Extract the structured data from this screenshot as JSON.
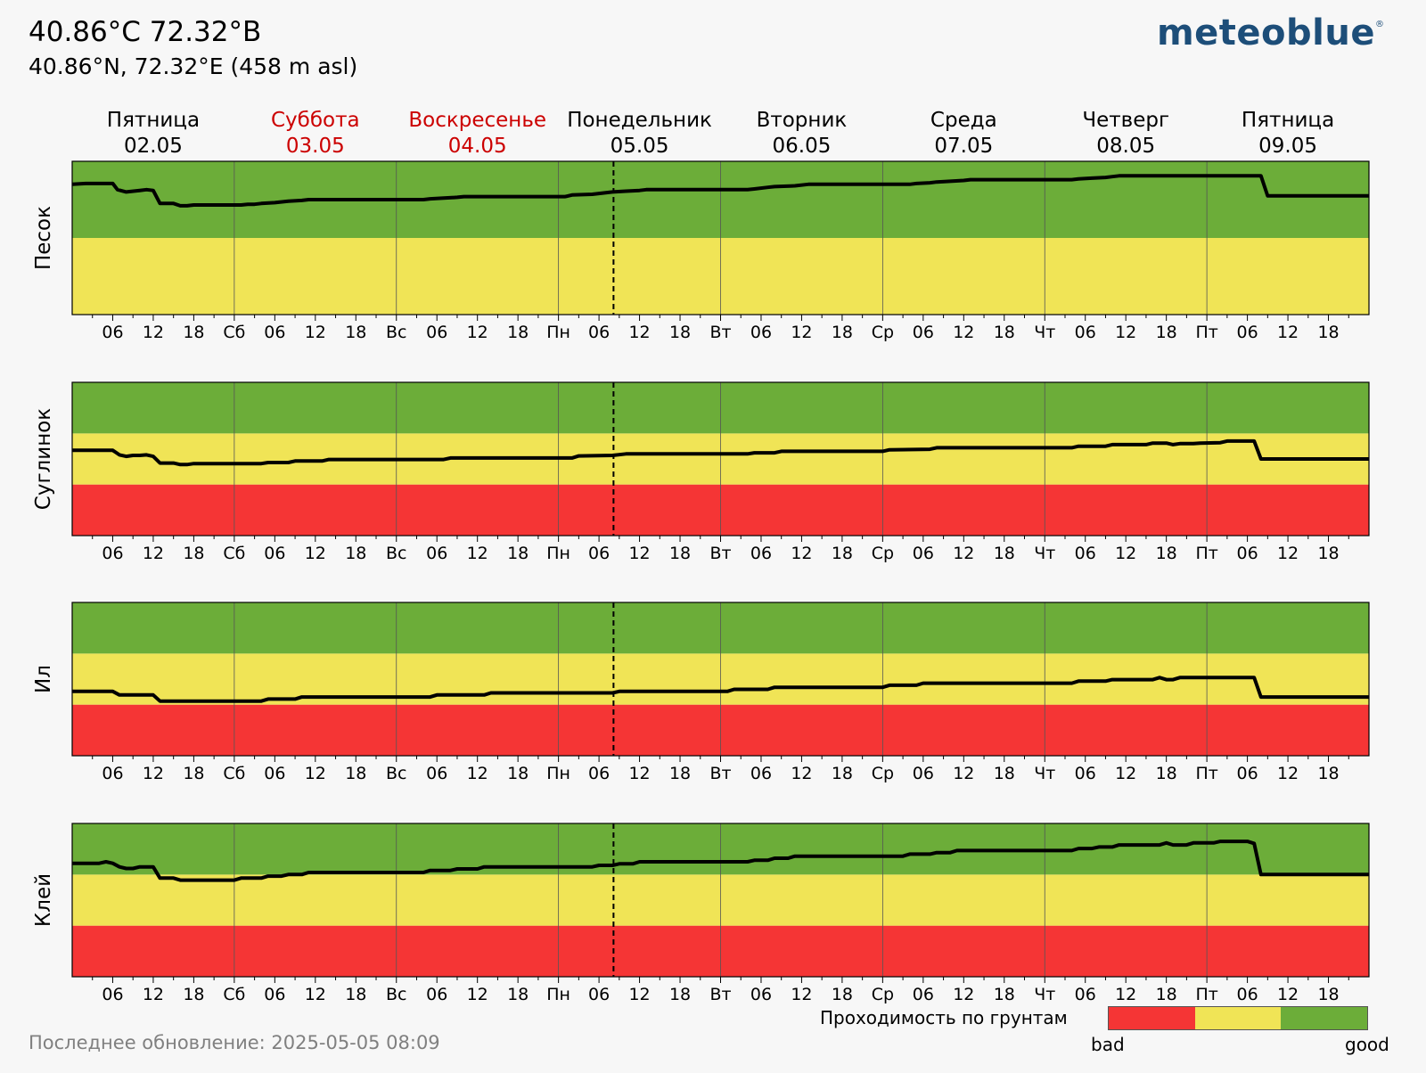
{
  "header": {
    "title": "40.86°C 72.32°B",
    "subtitle": "40.86°N, 72.32°E (458 m asl)"
  },
  "logo": {
    "text": "meteoblue",
    "mark": "®"
  },
  "footer": {
    "last_update": "Последнее обновление: 2025-05-05 08:09"
  },
  "legend": {
    "title": "Проходимость по грунтам",
    "bad_label": "bad",
    "good_label": "good",
    "colors": [
      "#f53535",
      "#f0e456",
      "#6cad39"
    ]
  },
  "colors": {
    "good": "#6cad39",
    "medium": "#f0e456",
    "bad": "#f53535",
    "weekend": "#cc0000",
    "line": "#000000",
    "grid": "#555555"
  },
  "chart_data": {
    "type": "line",
    "x_unit": "hours since 2025-05-02 00:00",
    "xlim": [
      0,
      192
    ],
    "ylim": [
      0,
      3
    ],
    "now_marker_hours": 80.15,
    "days": [
      {
        "name": "Пятница",
        "date": "02.05",
        "weekend": false
      },
      {
        "name": "Суббота",
        "date": "03.05",
        "weekend": true
      },
      {
        "name": "Воскресенье",
        "date": "04.05",
        "weekend": true
      },
      {
        "name": "Понедельник",
        "date": "05.05",
        "weekend": false
      },
      {
        "name": "Вторник",
        "date": "06.05",
        "weekend": false
      },
      {
        "name": "Среда",
        "date": "07.05",
        "weekend": false
      },
      {
        "name": "Четверг",
        "date": "08.05",
        "weekend": false
      },
      {
        "name": "Пятница",
        "date": "09.05",
        "weekend": false
      }
    ],
    "day_abbrev": [
      "",
      "Сб",
      "Вс",
      "Пн",
      "Вт",
      "Ср",
      "Чт",
      "Пт"
    ],
    "hour_labels": [
      "06",
      "12",
      "18"
    ],
    "panels": [
      {
        "label": "Песок",
        "bands": [
          "medium",
          "good"
        ],
        "ylim": [
          0,
          2
        ],
        "points": [
          [
            0,
            1.7
          ],
          [
            2,
            1.71
          ],
          [
            6,
            1.71
          ],
          [
            6.7,
            1.63
          ],
          [
            8,
            1.6
          ],
          [
            10,
            1.62
          ],
          [
            11,
            1.63
          ],
          [
            12,
            1.62
          ],
          [
            13,
            1.45
          ],
          [
            15,
            1.45
          ],
          [
            16,
            1.42
          ],
          [
            17,
            1.42
          ],
          [
            18,
            1.43
          ],
          [
            25,
            1.43
          ],
          [
            26,
            1.44
          ],
          [
            27,
            1.44
          ],
          [
            28,
            1.45
          ],
          [
            30,
            1.46
          ],
          [
            32,
            1.48
          ],
          [
            34,
            1.49
          ],
          [
            35,
            1.5
          ],
          [
            52,
            1.5
          ],
          [
            53,
            1.51
          ],
          [
            55,
            1.52
          ],
          [
            57,
            1.53
          ],
          [
            58,
            1.54
          ],
          [
            73,
            1.54
          ],
          [
            74,
            1.56
          ],
          [
            77,
            1.57
          ],
          [
            78,
            1.58
          ],
          [
            80,
            1.6
          ],
          [
            82,
            1.61
          ],
          [
            84,
            1.62
          ],
          [
            85,
            1.63
          ],
          [
            100,
            1.63
          ],
          [
            101,
            1.64
          ],
          [
            103,
            1.66
          ],
          [
            104,
            1.67
          ],
          [
            107,
            1.68
          ],
          [
            109,
            1.7
          ],
          [
            110,
            1.7
          ],
          [
            124,
            1.7
          ],
          [
            125,
            1.71
          ],
          [
            127,
            1.72
          ],
          [
            128,
            1.73
          ],
          [
            130,
            1.74
          ],
          [
            132,
            1.75
          ],
          [
            133,
            1.76
          ],
          [
            148,
            1.76
          ],
          [
            149,
            1.77
          ],
          [
            151,
            1.78
          ],
          [
            153,
            1.79
          ],
          [
            154,
            1.8
          ],
          [
            155,
            1.81
          ],
          [
            175,
            1.81
          ],
          [
            176,
            1.81
          ],
          [
            177,
            1.55
          ],
          [
            192,
            1.55
          ]
        ]
      },
      {
        "label": "Суглинок",
        "bands": [
          "bad",
          "medium",
          "good"
        ],
        "ylim": [
          0,
          3
        ],
        "points": [
          [
            0,
            1.67
          ],
          [
            6,
            1.67
          ],
          [
            7,
            1.58
          ],
          [
            8,
            1.55
          ],
          [
            9,
            1.57
          ],
          [
            10,
            1.57
          ],
          [
            11,
            1.58
          ],
          [
            12,
            1.55
          ],
          [
            13,
            1.42
          ],
          [
            15,
            1.42
          ],
          [
            16,
            1.39
          ],
          [
            17,
            1.39
          ],
          [
            18,
            1.41
          ],
          [
            28,
            1.41
          ],
          [
            29,
            1.43
          ],
          [
            32,
            1.43
          ],
          [
            33,
            1.46
          ],
          [
            37,
            1.46
          ],
          [
            38,
            1.49
          ],
          [
            55,
            1.49
          ],
          [
            56,
            1.52
          ],
          [
            74,
            1.52
          ],
          [
            75,
            1.56
          ],
          [
            80,
            1.57
          ],
          [
            82,
            1.6
          ],
          [
            100,
            1.6
          ],
          [
            101,
            1.62
          ],
          [
            104,
            1.62
          ],
          [
            105,
            1.65
          ],
          [
            120,
            1.65
          ],
          [
            121,
            1.68
          ],
          [
            127,
            1.69
          ],
          [
            128,
            1.72
          ],
          [
            148,
            1.72
          ],
          [
            149,
            1.75
          ],
          [
            153,
            1.75
          ],
          [
            154,
            1.78
          ],
          [
            159,
            1.78
          ],
          [
            160,
            1.81
          ],
          [
            162,
            1.81
          ],
          [
            163,
            1.78
          ],
          [
            164,
            1.8
          ],
          [
            166,
            1.8
          ],
          [
            167,
            1.81
          ],
          [
            170,
            1.82
          ],
          [
            171,
            1.85
          ],
          [
            175,
            1.85
          ],
          [
            176,
            1.5
          ],
          [
            192,
            1.5
          ]
        ]
      },
      {
        "label": "Ил",
        "bands": [
          "bad",
          "medium",
          "good"
        ],
        "ylim": [
          0,
          3
        ],
        "points": [
          [
            0,
            1.26
          ],
          [
            6,
            1.26
          ],
          [
            7,
            1.19
          ],
          [
            12,
            1.19
          ],
          [
            13,
            1.07
          ],
          [
            28,
            1.07
          ],
          [
            29,
            1.11
          ],
          [
            33,
            1.11
          ],
          [
            34,
            1.15
          ],
          [
            53,
            1.15
          ],
          [
            54,
            1.19
          ],
          [
            61,
            1.19
          ],
          [
            62,
            1.23
          ],
          [
            80,
            1.23
          ],
          [
            81,
            1.26
          ],
          [
            97,
            1.26
          ],
          [
            98,
            1.3
          ],
          [
            103,
            1.3
          ],
          [
            104,
            1.34
          ],
          [
            120,
            1.34
          ],
          [
            121,
            1.38
          ],
          [
            125,
            1.38
          ],
          [
            126,
            1.42
          ],
          [
            148,
            1.42
          ],
          [
            149,
            1.46
          ],
          [
            153,
            1.46
          ],
          [
            154,
            1.49
          ],
          [
            160,
            1.49
          ],
          [
            161,
            1.53
          ],
          [
            162,
            1.49
          ],
          [
            163,
            1.49
          ],
          [
            164,
            1.53
          ],
          [
            175,
            1.53
          ],
          [
            176,
            1.15
          ],
          [
            192,
            1.15
          ]
        ]
      },
      {
        "label": "Клей",
        "bands": [
          "bad",
          "medium",
          "good"
        ],
        "ylim": [
          0,
          3
        ],
        "points": [
          [
            0,
            2.22
          ],
          [
            4,
            2.22
          ],
          [
            5,
            2.25
          ],
          [
            6,
            2.22
          ],
          [
            7,
            2.15
          ],
          [
            8,
            2.12
          ],
          [
            9,
            2.12
          ],
          [
            10,
            2.15
          ],
          [
            12,
            2.15
          ],
          [
            13,
            1.93
          ],
          [
            15,
            1.93
          ],
          [
            16,
            1.89
          ],
          [
            24,
            1.89
          ],
          [
            25,
            1.93
          ],
          [
            28,
            1.93
          ],
          [
            29,
            1.97
          ],
          [
            31,
            1.97
          ],
          [
            32,
            2.0
          ],
          [
            34,
            2.0
          ],
          [
            35,
            2.04
          ],
          [
            52,
            2.04
          ],
          [
            53,
            2.08
          ],
          [
            56,
            2.08
          ],
          [
            57,
            2.11
          ],
          [
            60,
            2.11
          ],
          [
            61,
            2.15
          ],
          [
            77,
            2.15
          ],
          [
            78,
            2.18
          ],
          [
            80,
            2.18
          ],
          [
            81,
            2.21
          ],
          [
            83,
            2.21
          ],
          [
            84,
            2.25
          ],
          [
            100,
            2.25
          ],
          [
            101,
            2.28
          ],
          [
            103,
            2.28
          ],
          [
            104,
            2.32
          ],
          [
            106,
            2.32
          ],
          [
            107,
            2.36
          ],
          [
            123,
            2.36
          ],
          [
            124,
            2.4
          ],
          [
            127,
            2.4
          ],
          [
            128,
            2.43
          ],
          [
            130,
            2.43
          ],
          [
            131,
            2.47
          ],
          [
            148,
            2.47
          ],
          [
            149,
            2.51
          ],
          [
            151,
            2.51
          ],
          [
            152,
            2.54
          ],
          [
            154,
            2.54
          ],
          [
            155,
            2.58
          ],
          [
            161,
            2.58
          ],
          [
            162,
            2.62
          ],
          [
            163,
            2.58
          ],
          [
            165,
            2.58
          ],
          [
            166,
            2.62
          ],
          [
            169,
            2.62
          ],
          [
            170,
            2.65
          ],
          [
            172,
            2.65
          ],
          [
            174,
            2.65
          ],
          [
            175,
            2.61
          ],
          [
            176,
            2.0
          ],
          [
            192,
            2.0
          ]
        ]
      }
    ]
  }
}
